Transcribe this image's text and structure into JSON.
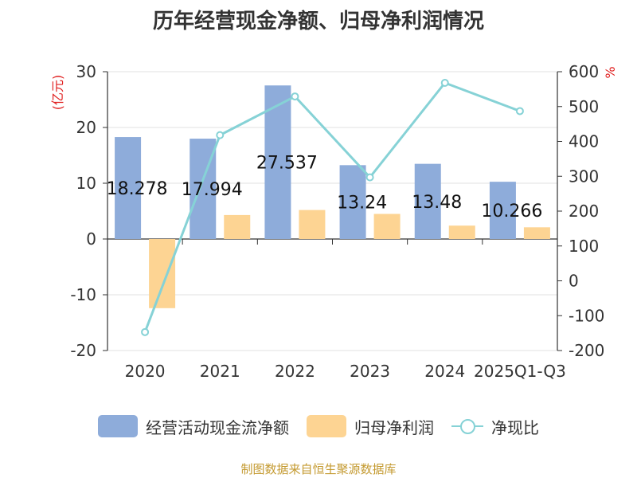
{
  "title": "历年经营现金净额、归母净利润情况",
  "source": "制图数据来自恒生聚源数据库",
  "chart_data": {
    "type": "bar",
    "categories": [
      "2020",
      "2021",
      "2022",
      "2023",
      "2024",
      "2025Q1-Q3"
    ],
    "series": [
      {
        "name": "经营活动现金流净额",
        "type": "bar",
        "axis": "left",
        "color": "#8eacda",
        "values": [
          18.278,
          17.994,
          27.537,
          13.24,
          13.48,
          10.266
        ],
        "labels": [
          "18.278",
          "17.994",
          "27.537",
          "13.24",
          "13.48",
          "10.266"
        ]
      },
      {
        "name": "归母净利润",
        "type": "bar",
        "axis": "left",
        "color": "#fdd493",
        "values": [
          -12.4,
          4.3,
          5.2,
          4.5,
          2.4,
          2.1
        ]
      },
      {
        "name": "净现比",
        "type": "line",
        "axis": "right",
        "color": "#86d2d6",
        "values": [
          -147,
          418,
          529,
          297,
          568,
          487
        ]
      }
    ],
    "y_left": {
      "label": "(亿元)",
      "min": -20,
      "max": 30,
      "ticks": [
        30,
        20,
        10,
        0,
        -10,
        -20
      ]
    },
    "y_right": {
      "label": "%",
      "min": -200,
      "max": 600,
      "ticks": [
        600,
        500,
        400,
        300,
        200,
        100,
        0,
        -100,
        -200
      ]
    },
    "legend_position": "bottom"
  }
}
